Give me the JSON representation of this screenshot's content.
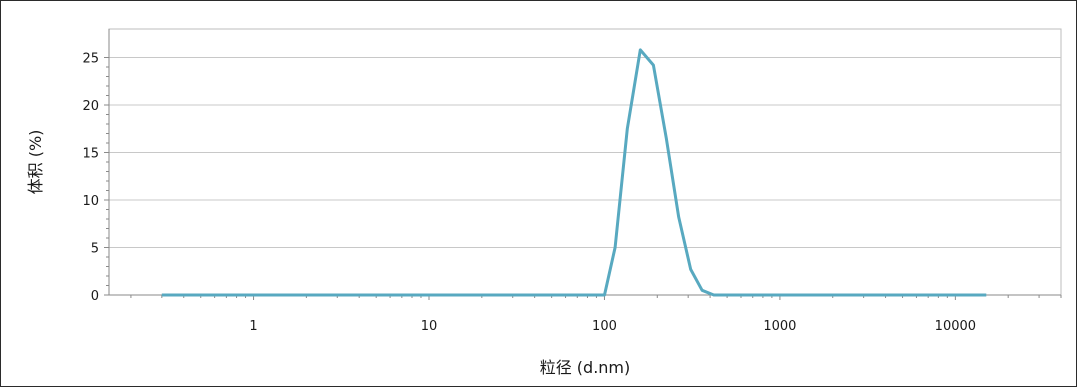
{
  "chart_data": {
    "type": "line",
    "xlabel": "粒径 (d.nm)",
    "ylabel": "体积 (%)",
    "x_scale": "log",
    "xlim": [
      0.15,
      40000
    ],
    "ylim": [
      0,
      28
    ],
    "x_ticks": [
      1,
      10,
      100,
      1000,
      10000
    ],
    "x_tick_labels": [
      "1",
      "10",
      "100",
      "1000",
      "10000"
    ],
    "y_ticks": [
      0,
      5,
      10,
      15,
      20,
      25
    ],
    "y_tick_labels": [
      "0",
      "5",
      "10",
      "15",
      "20",
      "25"
    ],
    "grid": "horizontal",
    "line_color": "#58a9c0",
    "series": [
      {
        "x": [
          0.3,
          1,
          10,
          100,
          115,
          135,
          160,
          190,
          225,
          265,
          310,
          360,
          420,
          1000,
          10000,
          15000
        ],
        "y": [
          0,
          0,
          0,
          0,
          5.0,
          17.5,
          25.8,
          24.2,
          16.5,
          8.2,
          2.7,
          0.5,
          0,
          0,
          0,
          0
        ]
      }
    ]
  }
}
